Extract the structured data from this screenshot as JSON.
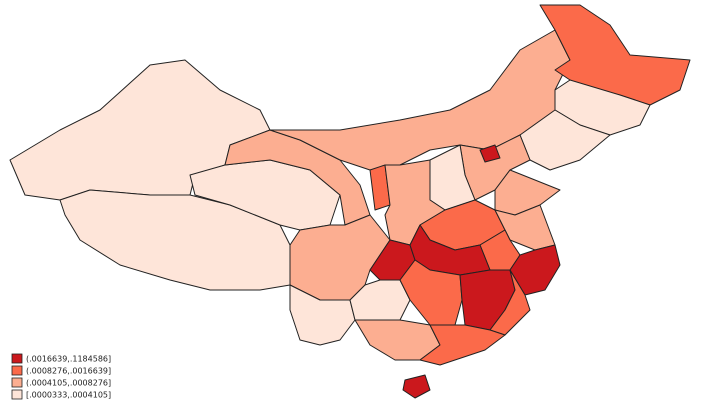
{
  "legend": {
    "items": [
      {
        "label": "(.0016639,.1184586]",
        "color": "#cb181d"
      },
      {
        "label": "(.0008276,.0016639]",
        "color": "#fb6a4a"
      },
      {
        "label": "(.0004105,.0008276]",
        "color": "#fcae91"
      },
      {
        "label": "[.0000333,.0004105]",
        "color": "#fee5d9"
      }
    ]
  }
}
